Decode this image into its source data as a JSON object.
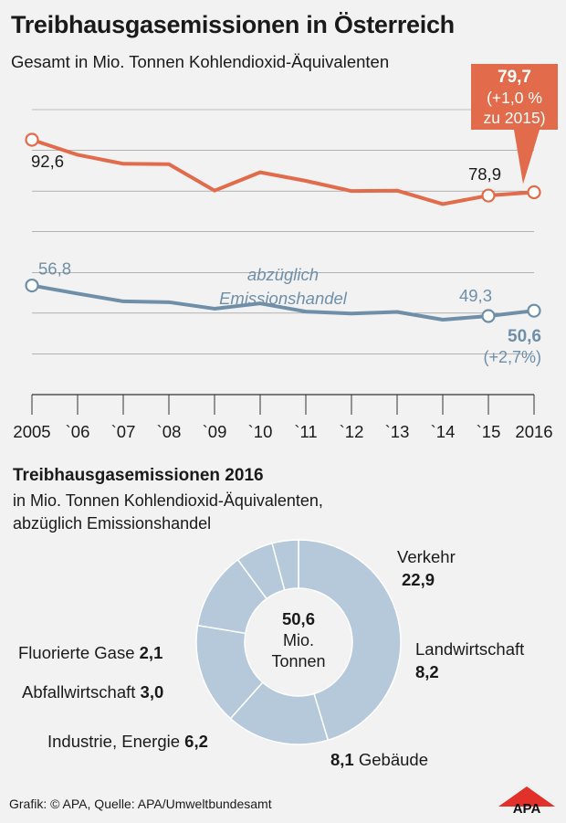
{
  "title": "Treibhausgasemissionen in Österreich",
  "subtitle": "Gesamt in Mio. Tonnen Kohlendioxid-Äquivalenten",
  "chart_data": [
    {
      "type": "line",
      "title": "Treibhausgasemissionen in Österreich",
      "subtitle": "Gesamt in Mio. Tonnen Kohlendioxid-Äquivalenten",
      "categories": [
        "2005",
        "`06",
        "`07",
        "`08",
        "`09",
        "`10",
        "`11",
        "`12",
        "`13",
        "`14",
        "`15",
        "2016"
      ],
      "ylim": [
        30,
        100
      ],
      "grid": true,
      "series": [
        {
          "values": [
            92.6,
            88.9,
            86.7,
            86.6,
            80.1,
            84.6,
            82.5,
            80.0,
            80.1,
            76.8,
            78.9,
            79.7
          ],
          "color": "#e26b4b",
          "labels": [
            {
              "index": 0,
              "text": "92,6"
            },
            {
              "index": 10,
              "text": "78,9"
            }
          ],
          "callout": {
            "index": 11,
            "value": "79,7",
            "lines": [
              "(+1,0 %",
              "zu 2015)"
            ]
          }
        },
        {
          "name": "abzüglich Emissionshandel",
          "name_lines": [
            "abzüglich",
            "Emissionshandel"
          ],
          "values": [
            56.8,
            54.8,
            52.9,
            52.7,
            51.1,
            52.4,
            50.4,
            49.9,
            50.3,
            48.4,
            49.3,
            50.6
          ],
          "color": "#6f8fa8",
          "labels": [
            {
              "index": 0,
              "text": "56,8"
            },
            {
              "index": 10,
              "text": "49,3"
            }
          ],
          "end_label": {
            "index": 11,
            "value": "50,6",
            "change": "(+2,7%)"
          }
        }
      ]
    },
    {
      "type": "pie",
      "title": "Treibhausgasemissionen 2016",
      "subtitle": [
        "in Mio. Tonnen Kohlendioxid-Äquivalenten,",
        "abzüglich Emissionshandel"
      ],
      "center_label": [
        "50,6",
        "Mio.",
        "Tonnen"
      ],
      "color": "#b5c9db",
      "slices": [
        {
          "label": "Verkehr",
          "value": 22.9,
          "value_text": "22,9"
        },
        {
          "label": "Landwirtschaft",
          "value": 8.2,
          "value_text": "8,2"
        },
        {
          "label": "Gebäude",
          "value": 8.1,
          "value_text": "8,1"
        },
        {
          "label": "Industrie, Energie",
          "value": 6.2,
          "value_text": "6,2"
        },
        {
          "label": "Abfallwirtschaft",
          "value": 3.0,
          "value_text": "3,0"
        },
        {
          "label": "Fluorierte Gase",
          "value": 2.1,
          "value_text": "2,1"
        }
      ]
    }
  ],
  "section2": {
    "title": "Treibhausgasemissionen 2016",
    "subtitle_lines": [
      "in Mio. Tonnen Kohlendioxid-Äquivalenten,",
      "abzüglich Emissionshandel"
    ]
  },
  "footer": "Grafik: © APA, Quelle: APA/Umweltbundesamt",
  "logo_text": "APA",
  "colors": {
    "background": "#f2f2f2",
    "orange": "#e26b4b",
    "blue_line": "#6f8fa8",
    "donut": "#b5c9db",
    "grid": "#555555"
  }
}
